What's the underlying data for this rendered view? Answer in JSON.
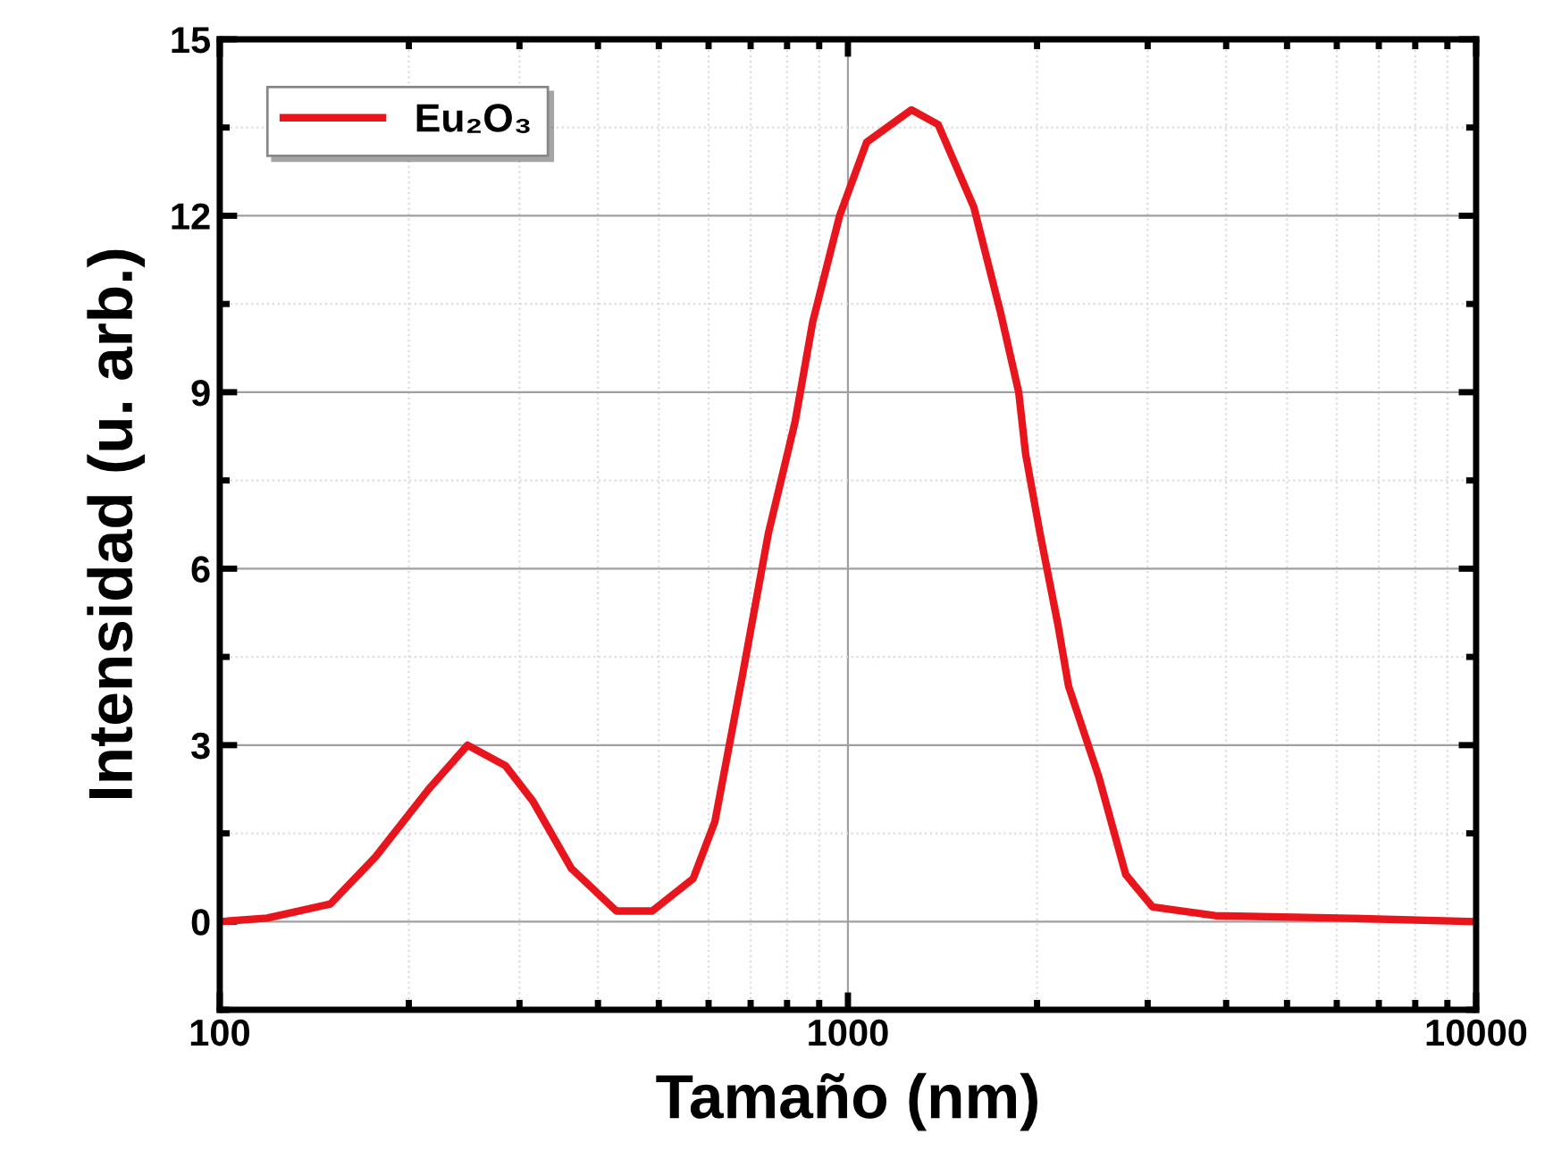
{
  "chart_data": {
    "type": "line",
    "xlabel": "Tamaño (nm)",
    "ylabel": "Intensidad (u. arb.)",
    "log": "x",
    "xlim": [
      100,
      10000
    ],
    "xticks": [
      100,
      1000,
      10000
    ],
    "ylim": [
      -1.5,
      15
    ],
    "yticks": [
      {
        "value": -1.5,
        "label": null
      },
      0,
      {
        "value": 1.5,
        "label": null
      },
      3,
      {
        "value": 4.5,
        "label": null
      },
      6,
      {
        "value": 7.5,
        "label": null
      },
      9,
      {
        "value": 10.5,
        "label": null
      },
      12,
      {
        "value": 13.5,
        "label": null
      },
      15
    ],
    "grid": true,
    "legend": "top left",
    "marker": "none",
    "line_style": "solid",
    "series": [
      {
        "name": "Eu₂O₃",
        "color": "#e8161c",
        "x": [
          100,
          119,
          150,
          177,
          215,
          248,
          285,
          315,
          363,
          428,
          488,
          567,
          614,
          677,
          747,
          824,
          879,
          970,
          1071,
          1262,
          1392,
          1586,
          1750,
          1870,
          1918,
          2022,
          2159,
          2245,
          2510,
          2768,
          3054,
          3845,
          6085,
          10000
        ],
        "values": [
          0,
          0.06,
          0.3,
          1.1,
          2.25,
          3.0,
          2.65,
          2.05,
          0.9,
          0.18,
          0.18,
          0.73,
          1.7,
          4.1,
          6.6,
          8.5,
          10.2,
          12.0,
          13.25,
          13.8,
          13.55,
          12.15,
          10.35,
          9.0,
          7.95,
          6.6,
          5.05,
          4.0,
          2.45,
          0.8,
          0.25,
          0.1,
          0.06,
          0
        ]
      }
    ]
  }
}
